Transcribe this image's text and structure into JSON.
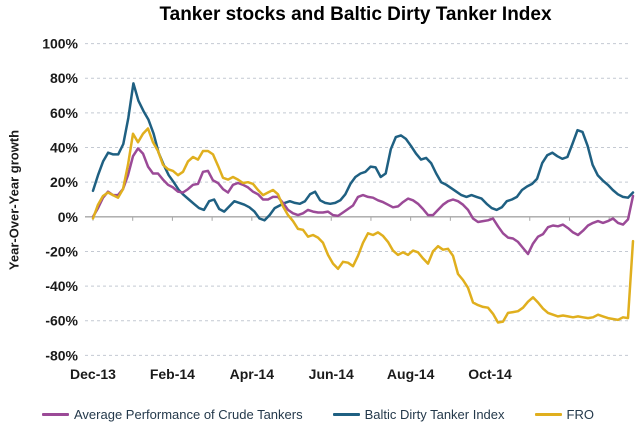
{
  "chart_data": {
    "type": "line",
    "title": "Tanker stocks and Baltic Dirty Tanker Index",
    "ylabel": "Year-Over-Year growth",
    "xlabel": "",
    "ylim": [
      -80,
      100
    ],
    "y_ticks": [
      100,
      80,
      60,
      40,
      20,
      0,
      -20,
      -40,
      -60,
      -80
    ],
    "y_tick_suffix": "%",
    "x_ticks": [
      {
        "label": "Dec-13",
        "month": 0
      },
      {
        "label": "Feb-14",
        "month": 2
      },
      {
        "label": "Apr-14",
        "month": 4
      },
      {
        "label": "Jun-14",
        "month": 6
      },
      {
        "label": "Aug-14",
        "month": 8
      },
      {
        "label": "Oct-14",
        "month": 10
      }
    ],
    "x_months_total": 13.6,
    "grid": "horizontal-dashed",
    "legend_position": "bottom",
    "series": [
      {
        "name": "Average Performance of Crude Tankers",
        "color": "#9B4A97",
        "values": [
          0,
          5,
          11,
          14.5,
          12.5,
          12.5,
          16,
          24,
          35,
          39.5,
          36.5,
          29,
          25,
          25,
          21.5,
          18.5,
          17,
          14.5,
          14,
          16,
          18.5,
          19,
          26,
          26.5,
          21,
          19.5,
          16,
          14,
          18.5,
          19.5,
          18.5,
          17,
          14.5,
          13,
          10,
          10,
          11.5,
          11.5,
          8,
          4,
          2,
          1,
          2,
          4,
          3,
          2.5,
          2.5,
          3,
          1,
          0.5,
          2.5,
          4.5,
          6.5,
          11.5,
          12.5,
          11.5,
          11,
          9.5,
          8.5,
          7,
          5.5,
          6,
          8.5,
          10.5,
          9.5,
          7.5,
          4.5,
          1,
          1,
          4,
          7,
          9,
          10,
          9,
          7,
          4,
          -1,
          -3,
          -2.5,
          -2,
          -1,
          -5.5,
          -9.5,
          -12,
          -12.5,
          -14.5,
          -18,
          -21.5,
          -15.5,
          -11.5,
          -10,
          -6,
          -5,
          -5.5,
          -4.5,
          -6.5,
          -9,
          -10.5,
          -8,
          -5,
          -3.5,
          -2.5,
          -3.5,
          -2.5,
          -1,
          -3.5,
          -4.5,
          -1.5,
          12
        ]
      },
      {
        "name": "Baltic Dirty Tanker Index",
        "color": "#1F6082",
        "values": [
          15,
          24,
          32,
          37,
          36,
          36,
          42,
          57,
          77,
          67,
          61,
          56,
          48,
          37,
          30,
          24,
          20,
          15.5,
          12.5,
          10,
          7.5,
          5,
          4,
          9,
          10,
          4.5,
          3,
          6,
          9,
          8,
          7,
          5.5,
          3,
          -1,
          -2,
          1,
          5,
          6.5,
          8,
          9,
          8,
          7.5,
          9,
          13,
          14.5,
          9.5,
          8,
          7.5,
          8,
          9.5,
          13,
          19,
          23,
          25,
          26,
          29,
          28.5,
          23,
          25,
          39,
          46,
          47,
          45,
          41,
          36.5,
          33,
          34,
          31,
          25,
          20,
          18.5,
          16.5,
          14.5,
          12.5,
          11.5,
          12.5,
          11.5,
          10.5,
          7.5,
          5,
          4,
          5.5,
          9,
          10,
          11.5,
          15.5,
          17.5,
          19,
          22,
          31,
          35.5,
          37,
          35,
          33.5,
          34.5,
          42,
          50,
          49,
          41,
          30,
          24,
          21,
          18.5,
          15.5,
          13,
          11.5,
          11,
          14
        ]
      },
      {
        "name": "FRO",
        "color": "#E0AF1E",
        "values": [
          -1,
          7,
          12,
          14,
          12.5,
          11,
          16,
          30,
          48,
          43,
          48,
          51,
          43,
          38,
          30,
          27.5,
          26.5,
          24,
          26,
          32,
          34.5,
          33,
          38,
          38,
          36,
          29.5,
          22.5,
          21.5,
          23,
          21.5,
          19.5,
          20,
          19,
          15.5,
          12.5,
          14,
          15.5,
          13,
          6,
          1,
          -2.5,
          -7,
          -7.5,
          -11.5,
          -10.5,
          -12,
          -15,
          -22,
          -27,
          -30,
          -26,
          -26.5,
          -28.5,
          -22.5,
          -15,
          -9.5,
          -10.5,
          -9,
          -11,
          -14.5,
          -19.5,
          -22,
          -20.5,
          -22,
          -19.5,
          -20.5,
          -24,
          -27,
          -20,
          -17,
          -19,
          -18.5,
          -22.5,
          -33,
          -36.5,
          -41,
          -49.5,
          -51,
          -52,
          -52.5,
          -56,
          -61,
          -60.5,
          -55.5,
          -55,
          -54.5,
          -52.5,
          -49,
          -46.5,
          -49.5,
          -53,
          -55.5,
          -56.5,
          -57.5,
          -57,
          -57.5,
          -58,
          -57.5,
          -58,
          -58.5,
          -58,
          -56.5,
          -57.5,
          -58.5,
          -59,
          -59.5,
          -58,
          -58.5,
          -14
        ]
      }
    ]
  },
  "palette": {
    "background": "#ffffff",
    "gridline": "#c4c9d2",
    "zero_line": "#a6a6a6",
    "axis_text": "#1a1a1a",
    "legend_text": "#24394b",
    "title_text": "#000000"
  }
}
